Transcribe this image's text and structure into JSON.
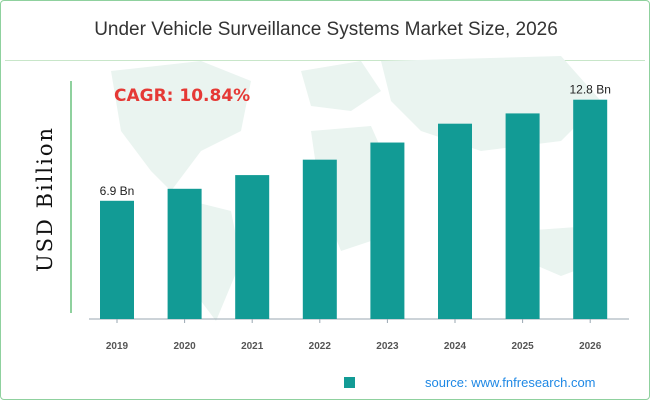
{
  "chart_data": {
    "type": "bar",
    "title": "Under Vehicle Surveillance Systems Market Size, 2026",
    "ylabel": "USD Billion",
    "xlabel": "",
    "categories": [
      "2019",
      "2020",
      "2021",
      "2022",
      "2023",
      "2024",
      "2025",
      "2026"
    ],
    "values": [
      6.9,
      7.6,
      8.4,
      9.3,
      10.3,
      11.4,
      12.0,
      12.8
    ],
    "data_labels": [
      "6.9 Bn",
      "",
      "",
      "",
      "",
      "",
      "",
      "12.8 Bn"
    ],
    "ylim": [
      0,
      13.6
    ],
    "annotation": "CAGR: 10.84%",
    "grid": false,
    "bar_color": "#129b95",
    "annotation_color": "#e53935"
  },
  "footer": {
    "source": "source: www.fnfresearch.com"
  }
}
